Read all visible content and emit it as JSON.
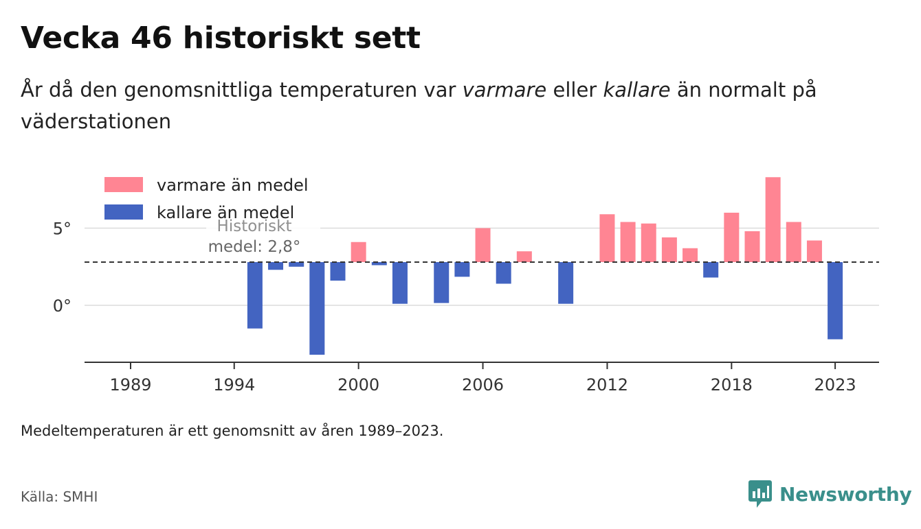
{
  "header": {
    "title": "Vecka 46 historiskt sett",
    "subtitle_before": "År då den genomsnittliga temperaturen var ",
    "subtitle_warm": "varmare",
    "subtitle_mid": " eller ",
    "subtitle_cold": "kallare",
    "subtitle_after": " än normalt på väderstationen"
  },
  "footer": {
    "note": "Medeltemperaturen är ett genomsnitt av åren 1989–2023.",
    "source": "Källa: SMHI",
    "brand": "Newsworthy"
  },
  "colors": {
    "warm": "#ff8593",
    "cold": "#4364c1",
    "brand": "#3a8f8b"
  },
  "chart_data": {
    "type": "bar",
    "x_ticks": [
      1989,
      1994,
      2000,
      2006,
      2012,
      2018,
      2023
    ],
    "y_ticks": [
      {
        "value": 0,
        "label": "0°"
      },
      {
        "value": 5,
        "label": "5°"
      }
    ],
    "baseline": 2.8,
    "baseline_label_line1": "Historiskt",
    "baseline_label_line2": "medel: 2,8°",
    "legend": {
      "position": "top-left",
      "warm": "varmare än medel",
      "cold": "kallare än medel"
    },
    "series": [
      {
        "x": 1995,
        "y": -1.5
      },
      {
        "x": 1996,
        "y": 2.3
      },
      {
        "x": 1997,
        "y": 2.5
      },
      {
        "x": 1998,
        "y": -3.2
      },
      {
        "x": 1999,
        "y": 1.6
      },
      {
        "x": 2000,
        "y": 4.1
      },
      {
        "x": 2001,
        "y": 2.6
      },
      {
        "x": 2002,
        "y": 0.1
      },
      {
        "x": 2004,
        "y": 0.15
      },
      {
        "x": 2005,
        "y": 1.85
      },
      {
        "x": 2006,
        "y": 5.0
      },
      {
        "x": 2007,
        "y": 1.4
      },
      {
        "x": 2008,
        "y": 3.5
      },
      {
        "x": 2010,
        "y": 0.1
      },
      {
        "x": 2012,
        "y": 5.9
      },
      {
        "x": 2013,
        "y": 5.4
      },
      {
        "x": 2014,
        "y": 5.3
      },
      {
        "x": 2015,
        "y": 4.4
      },
      {
        "x": 2016,
        "y": 3.7
      },
      {
        "x": 2017,
        "y": 1.8
      },
      {
        "x": 2018,
        "y": 6.0
      },
      {
        "x": 2019,
        "y": 4.8
      },
      {
        "x": 2020,
        "y": 8.3
      },
      {
        "x": 2021,
        "y": 5.4
      },
      {
        "x": 2022,
        "y": 4.2
      },
      {
        "x": 2023,
        "y": -2.2
      }
    ]
  }
}
